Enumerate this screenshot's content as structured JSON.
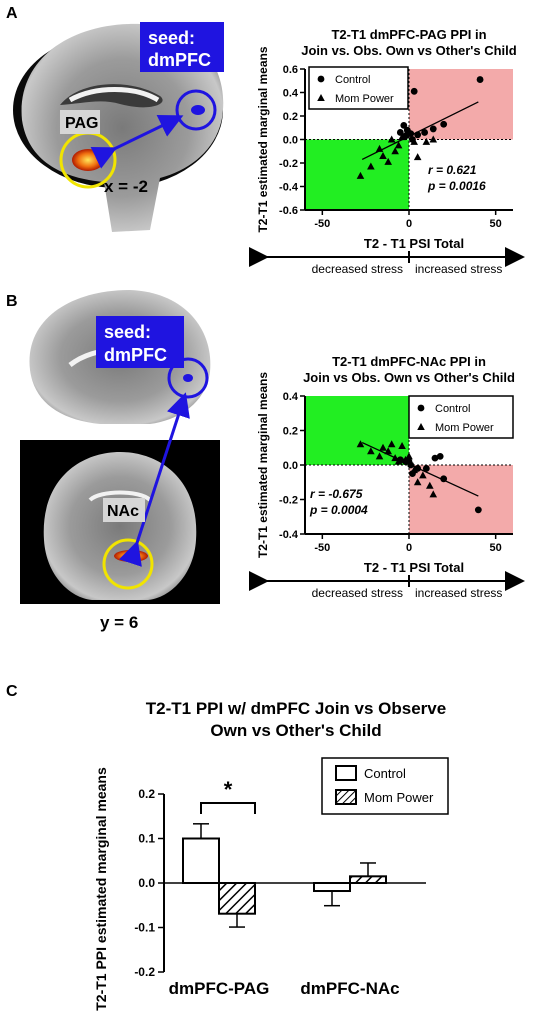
{
  "panels": {
    "A": {
      "letter": "A",
      "seed_label_1": "seed:",
      "seed_label_2": "dmPFC",
      "roi_label": "PAG",
      "slice_label": "x = -2"
    },
    "B": {
      "letter": "B",
      "seed_label_1": "seed:",
      "seed_label_2": "dmPFC",
      "roi_label": "NAc",
      "slice_label": "y = 6"
    },
    "C": {
      "letter": "C"
    }
  },
  "colors": {
    "seed_blue": "#1f14e0",
    "roi_yellow": "#f1e400",
    "quadrant_green": "#22ee22",
    "quadrant_pink": "#f3aaaa",
    "activation_orange": "#f07010"
  },
  "chart_data": [
    {
      "type": "scatter",
      "title_line1": "T2-T1 dmPFC-PAG PPI in",
      "title_line2": "Join vs. Obs. Own vs Other's Child",
      "xlabel": "T2 - T1 PSI Total",
      "ylabel": "T2-T1 estimated marginal means",
      "xlim": [
        -60,
        60
      ],
      "ylim": [
        -0.6,
        0.6
      ],
      "xticks": [
        "-50",
        "0",
        "50"
      ],
      "yticks": [
        "-0.6",
        "-0.4",
        "-0.2",
        "0.0",
        "0.2",
        "0.4",
        "0.6"
      ],
      "legend": {
        "position": "top-left",
        "entries": [
          "Control",
          "Mom Power"
        ]
      },
      "stats": {
        "r_label": "r = 0.621",
        "p_label": "p = 0.0016"
      },
      "stress_left": "decreased stress",
      "stress_right": "increased stress",
      "quadrants": {
        "green": "bottom-left",
        "pink": "top-right"
      },
      "fit_line": {
        "x": [
          -27,
          40
        ],
        "y": [
          -0.17,
          0.32
        ]
      },
      "series": [
        {
          "name": "Control",
          "marker": "circle",
          "points": [
            [
              -5,
              0.06
            ],
            [
              -3,
              0.12
            ],
            [
              -1,
              0.08
            ],
            [
              1,
              0.05
            ],
            [
              3,
              0.41
            ],
            [
              5,
              0.04
            ],
            [
              9,
              0.06
            ],
            [
              14,
              0.09
            ],
            [
              20,
              0.13
            ],
            [
              41,
              0.51
            ],
            [
              2,
              0.0
            ],
            [
              -2,
              0.03
            ]
          ]
        },
        {
          "name": "Mom Power",
          "marker": "triangle",
          "points": [
            [
              -28,
              -0.31
            ],
            [
              -22,
              -0.23
            ],
            [
              -17,
              -0.08
            ],
            [
              -15,
              -0.14
            ],
            [
              -12,
              -0.19
            ],
            [
              -10,
              0.0
            ],
            [
              -8,
              -0.1
            ],
            [
              -6,
              -0.05
            ],
            [
              -4,
              0.02
            ],
            [
              -2,
              0.04
            ],
            [
              0,
              0.05
            ],
            [
              3,
              -0.02
            ],
            [
              5,
              -0.15
            ],
            [
              10,
              -0.02
            ],
            [
              14,
              0.0
            ]
          ]
        }
      ]
    },
    {
      "type": "scatter",
      "title_line1": "T2-T1 dmPFC-NAc PPI in",
      "title_line2": "Join vs Obs. Own vs Other's Child",
      "xlabel": "T2 - T1 PSI Total",
      "ylabel": "T2-T1 estimated marginal means",
      "xlim": [
        -60,
        60
      ],
      "ylim": [
        -0.4,
        0.4
      ],
      "xticks": [
        "-50",
        "0",
        "50"
      ],
      "yticks": [
        "-0.4",
        "-0.2",
        "0.0",
        "0.2",
        "0.4"
      ],
      "legend": {
        "position": "top-right",
        "entries": [
          "Control",
          "Mom Power"
        ]
      },
      "stats": {
        "r_label": "r = -0.675",
        "p_label": "p = 0.0004"
      },
      "stress_left": "decreased stress",
      "stress_right": "increased stress",
      "quadrants": {
        "green": "top-left",
        "pink": "bottom-right"
      },
      "fit_line": {
        "x": [
          -27,
          40
        ],
        "y": [
          0.13,
          -0.18
        ]
      },
      "series": [
        {
          "name": "Control",
          "marker": "circle",
          "points": [
            [
              -5,
              0.03
            ],
            [
              -2,
              0.02
            ],
            [
              0,
              0.02
            ],
            [
              1,
              0.0
            ],
            [
              2,
              -0.05
            ],
            [
              5,
              -0.02
            ],
            [
              10,
              -0.02
            ],
            [
              15,
              0.04
            ],
            [
              18,
              0.05
            ],
            [
              20,
              -0.08
            ],
            [
              40,
              -0.26
            ]
          ]
        },
        {
          "name": "Mom Power",
          "marker": "triangle",
          "points": [
            [
              -28,
              0.12
            ],
            [
              -22,
              0.08
            ],
            [
              -17,
              0.05
            ],
            [
              -15,
              0.1
            ],
            [
              -12,
              0.08
            ],
            [
              -10,
              0.12
            ],
            [
              -8,
              0.04
            ],
            [
              -6,
              0.02
            ],
            [
              -4,
              0.11
            ],
            [
              -2,
              0.03
            ],
            [
              0,
              0.05
            ],
            [
              3,
              -0.03
            ],
            [
              5,
              -0.1
            ],
            [
              8,
              -0.06
            ],
            [
              12,
              -0.12
            ],
            [
              14,
              -0.17
            ]
          ]
        }
      ]
    },
    {
      "type": "bar",
      "title_line1": "T2-T1 PPI w/ dmPFC Join vs Observe",
      "title_line2": "Own vs Other's Child",
      "ylabel": "T2-T1 PPI estimated marginal means",
      "categories": [
        "dmPFC-PAG",
        "dmPFC-NAc"
      ],
      "ylim": [
        -0.2,
        0.2
      ],
      "yticks": [
        "-0.2",
        "-0.1",
        "0.0",
        "0.1",
        "0.2"
      ],
      "legend": {
        "position": "top-right",
        "entries": [
          "Control",
          "Mom Power"
        ]
      },
      "significance": "*",
      "series": [
        {
          "name": "Control",
          "pattern": "open",
          "values": [
            0.1,
            -0.018
          ],
          "errors": [
            0.033,
            0.033
          ]
        },
        {
          "name": "Mom Power",
          "pattern": "hatched",
          "values": [
            -0.069,
            0.015
          ],
          "errors": [
            0.03,
            0.03
          ]
        }
      ]
    }
  ]
}
